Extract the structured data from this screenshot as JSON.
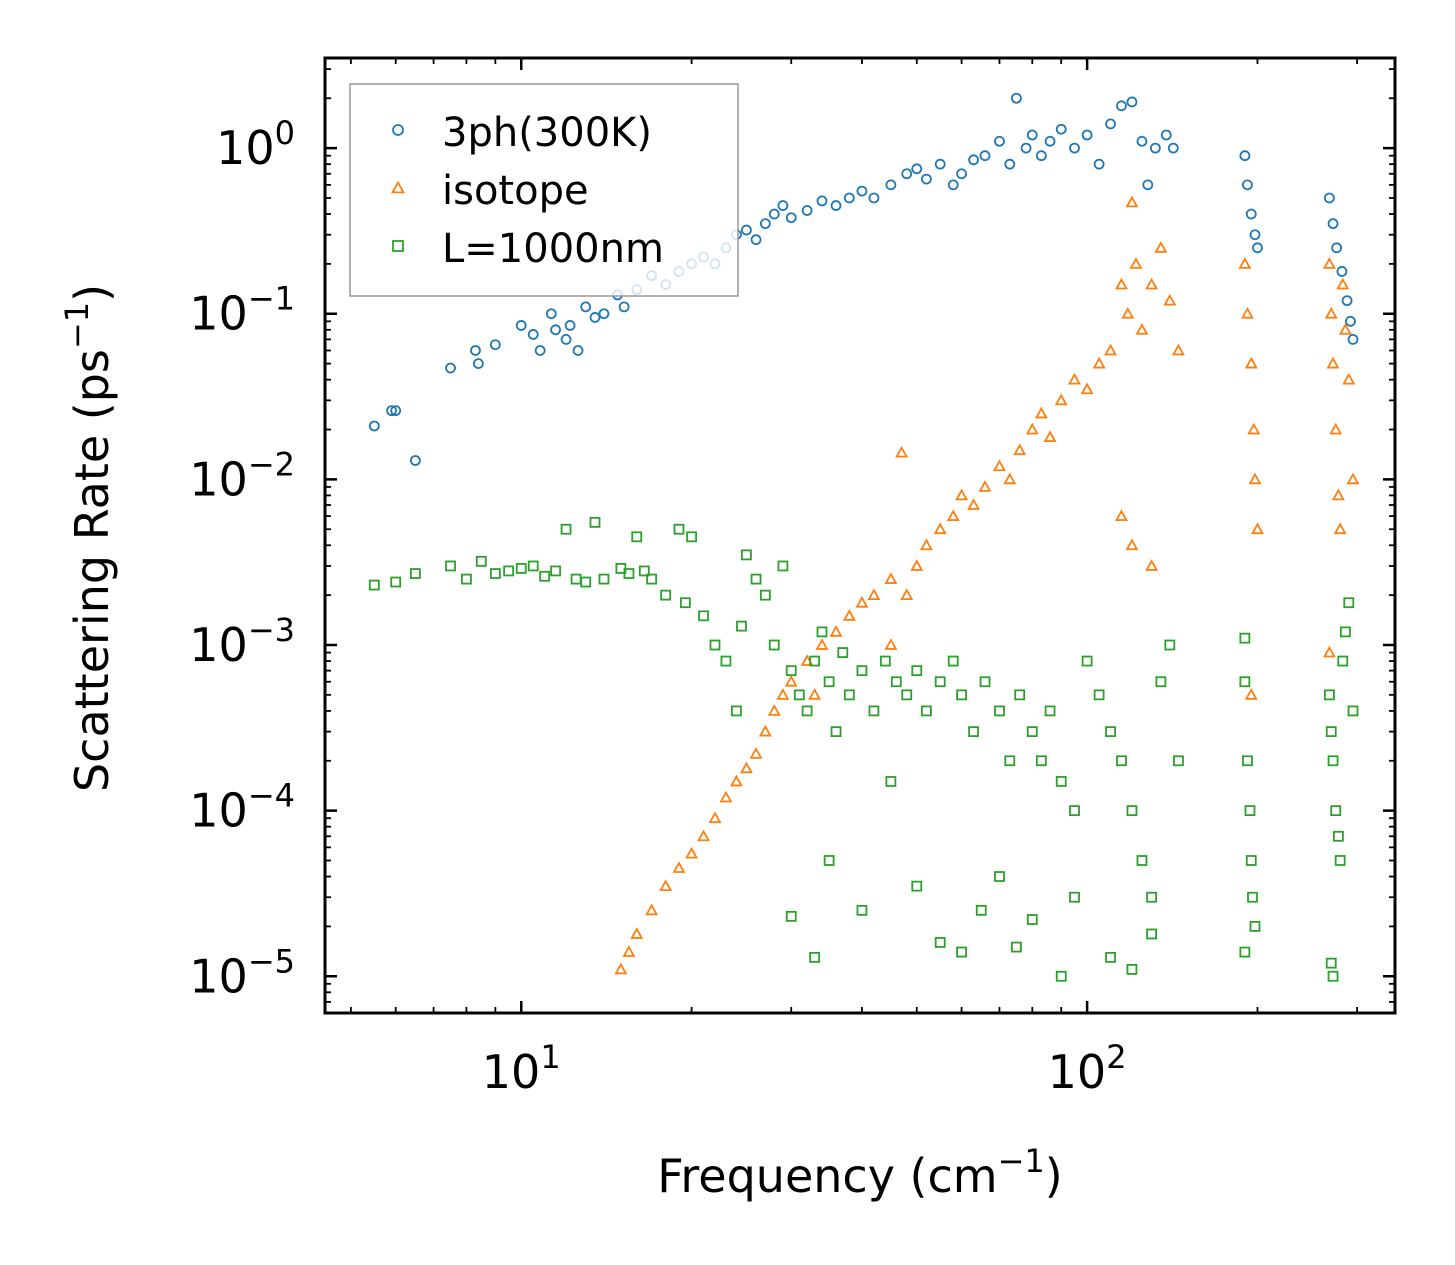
{
  "chart_data": {
    "type": "scatter",
    "title": "",
    "xlabel": "Frequency (cm",
    "xlabel_sup": "−1",
    "xlabel_close": ")",
    "ylabel": "Scattering Rate (ps",
    "ylabel_sup": "−1",
    "ylabel_close": ")",
    "xscale": "log",
    "yscale": "log",
    "xlim": [
      4.5,
      350
    ],
    "ylim": [
      6e-06,
      3.5
    ],
    "x_ticks": [
      {
        "base": "10",
        "exp": "1",
        "value": 10
      },
      {
        "base": "10",
        "exp": "2",
        "value": 100
      }
    ],
    "y_ticks": [
      {
        "base": "10",
        "exp": "0",
        "value": 1
      },
      {
        "base": "10",
        "exp": "−1",
        "value": 0.1
      },
      {
        "base": "10",
        "exp": "−2",
        "value": 0.01
      },
      {
        "base": "10",
        "exp": "−3",
        "value": 0.001
      },
      {
        "base": "10",
        "exp": "−4",
        "value": 0.0001
      },
      {
        "base": "10",
        "exp": "−5",
        "value": 1e-05
      }
    ],
    "grid": false,
    "legend_position": "top-left",
    "series": [
      {
        "name": "3ph(300K)",
        "marker": "circle",
        "color": "#1f77b4",
        "points": [
          [
            5.5,
            0.021
          ],
          [
            5.9,
            0.026
          ],
          [
            6.0,
            0.026
          ],
          [
            6.5,
            0.013
          ],
          [
            7.5,
            0.047
          ],
          [
            8.3,
            0.06
          ],
          [
            8.4,
            0.05
          ],
          [
            9.0,
            0.065
          ],
          [
            10.0,
            0.085
          ],
          [
            10.5,
            0.075
          ],
          [
            10.8,
            0.06
          ],
          [
            11.3,
            0.1
          ],
          [
            11.5,
            0.08
          ],
          [
            12.0,
            0.07
          ],
          [
            12.2,
            0.085
          ],
          [
            12.6,
            0.06
          ],
          [
            13.0,
            0.11
          ],
          [
            13.5,
            0.095
          ],
          [
            14.0,
            0.1
          ],
          [
            14.8,
            0.13
          ],
          [
            15.2,
            0.11
          ],
          [
            16.0,
            0.14
          ],
          [
            17.0,
            0.17
          ],
          [
            18.0,
            0.15
          ],
          [
            19.0,
            0.18
          ],
          [
            20.0,
            0.2
          ],
          [
            21.0,
            0.22
          ],
          [
            22.0,
            0.2
          ],
          [
            23.0,
            0.25
          ],
          [
            24.0,
            0.3
          ],
          [
            25.0,
            0.32
          ],
          [
            26.0,
            0.28
          ],
          [
            27.0,
            0.35
          ],
          [
            28.0,
            0.4
          ],
          [
            29.0,
            0.45
          ],
          [
            30.0,
            0.38
          ],
          [
            32.0,
            0.42
          ],
          [
            34.0,
            0.48
          ],
          [
            36.0,
            0.45
          ],
          [
            38.0,
            0.5
          ],
          [
            40.0,
            0.55
          ],
          [
            42.0,
            0.5
          ],
          [
            45.0,
            0.6
          ],
          [
            48.0,
            0.7
          ],
          [
            50.0,
            0.75
          ],
          [
            52.0,
            0.65
          ],
          [
            55.0,
            0.8
          ],
          [
            58.0,
            0.6
          ],
          [
            60.0,
            0.7
          ],
          [
            63.0,
            0.85
          ],
          [
            66.0,
            0.9
          ],
          [
            70.0,
            1.1
          ],
          [
            73.0,
            0.8
          ],
          [
            75.0,
            2.0
          ],
          [
            78.0,
            1.0
          ],
          [
            80.0,
            1.2
          ],
          [
            83.0,
            0.9
          ],
          [
            86.0,
            1.1
          ],
          [
            90.0,
            1.3
          ],
          [
            95.0,
            1.0
          ],
          [
            100.0,
            1.2
          ],
          [
            105.0,
            0.8
          ],
          [
            110.0,
            1.4
          ],
          [
            115.0,
            1.8
          ],
          [
            120.0,
            1.9
          ],
          [
            125.0,
            1.1
          ],
          [
            128.0,
            0.6
          ],
          [
            132.0,
            1.0
          ],
          [
            138.0,
            1.2
          ],
          [
            142.0,
            1.0
          ],
          [
            190.0,
            0.9
          ],
          [
            192.0,
            0.6
          ],
          [
            195.0,
            0.4
          ],
          [
            198.0,
            0.3
          ],
          [
            200.0,
            0.25
          ],
          [
            268.0,
            0.5
          ],
          [
            272.0,
            0.35
          ],
          [
            276.0,
            0.25
          ],
          [
            282.0,
            0.18
          ],
          [
            288.0,
            0.12
          ],
          [
            292.0,
            0.09
          ],
          [
            295.0,
            0.07
          ]
        ]
      },
      {
        "name": "isotope",
        "marker": "triangle",
        "color": "#ff7f0e",
        "points": [
          [
            15.0,
            1.1e-05
          ],
          [
            15.5,
            1.4e-05
          ],
          [
            16.0,
            1.8e-05
          ],
          [
            17.0,
            2.5e-05
          ],
          [
            18.0,
            3.5e-05
          ],
          [
            19.0,
            4.5e-05
          ],
          [
            20.0,
            5.5e-05
          ],
          [
            21.0,
            7e-05
          ],
          [
            22.0,
            9e-05
          ],
          [
            23.0,
            0.00012
          ],
          [
            24.0,
            0.00015
          ],
          [
            25.0,
            0.00018
          ],
          [
            26.0,
            0.00022
          ],
          [
            27.0,
            0.0003
          ],
          [
            28.0,
            0.0004
          ],
          [
            29.0,
            0.0005
          ],
          [
            30.0,
            0.0006
          ],
          [
            32.0,
            0.0008
          ],
          [
            34.0,
            0.001
          ],
          [
            36.0,
            0.0012
          ],
          [
            38.0,
            0.0015
          ],
          [
            40.0,
            0.0018
          ],
          [
            42.0,
            0.002
          ],
          [
            45.0,
            0.0025
          ],
          [
            48.0,
            0.002
          ],
          [
            50.0,
            0.003
          ],
          [
            52.0,
            0.004
          ],
          [
            55.0,
            0.005
          ],
          [
            58.0,
            0.006
          ],
          [
            60.0,
            0.008
          ],
          [
            63.0,
            0.007
          ],
          [
            66.0,
            0.009
          ],
          [
            70.0,
            0.012
          ],
          [
            73.0,
            0.01
          ],
          [
            76.0,
            0.015
          ],
          [
            80.0,
            0.02
          ],
          [
            83.0,
            0.025
          ],
          [
            86.0,
            0.018
          ],
          [
            90.0,
            0.03
          ],
          [
            95.0,
            0.04
          ],
          [
            100.0,
            0.035
          ],
          [
            105.0,
            0.05
          ],
          [
            110.0,
            0.06
          ],
          [
            115.0,
            0.15
          ],
          [
            118.0,
            0.1
          ],
          [
            122.0,
            0.2
          ],
          [
            125.0,
            0.08
          ],
          [
            130.0,
            0.15
          ],
          [
            135.0,
            0.25
          ],
          [
            140.0,
            0.12
          ],
          [
            145.0,
            0.06
          ],
          [
            120.0,
            0.47
          ],
          [
            47.0,
            0.0145
          ],
          [
            115.0,
            0.006
          ],
          [
            120.0,
            0.004
          ],
          [
            130.0,
            0.003
          ],
          [
            33.0,
            0.0005
          ],
          [
            45.0,
            0.001
          ],
          [
            190.0,
            0.2
          ],
          [
            192.0,
            0.1
          ],
          [
            195.0,
            0.05
          ],
          [
            197.0,
            0.02
          ],
          [
            198.0,
            0.01
          ],
          [
            200.0,
            0.005
          ],
          [
            195.0,
            0.0005
          ],
          [
            268.0,
            0.2
          ],
          [
            270.0,
            0.1
          ],
          [
            272.0,
            0.05
          ],
          [
            275.0,
            0.02
          ],
          [
            278.0,
            0.008
          ],
          [
            280.0,
            0.005
          ],
          [
            283.0,
            0.15
          ],
          [
            286.0,
            0.08
          ],
          [
            290.0,
            0.04
          ],
          [
            295.0,
            0.01
          ],
          [
            268.0,
            0.0009
          ]
        ]
      },
      {
        "name": "L=1000nm",
        "marker": "square",
        "color": "#2ca02c",
        "points": [
          [
            5.5,
            0.0023
          ],
          [
            6.0,
            0.0024
          ],
          [
            6.5,
            0.0027
          ],
          [
            7.5,
            0.003
          ],
          [
            8.0,
            0.0025
          ],
          [
            8.5,
            0.0032
          ],
          [
            9.0,
            0.0027
          ],
          [
            9.5,
            0.0028
          ],
          [
            10.0,
            0.0029
          ],
          [
            10.5,
            0.003
          ],
          [
            11.0,
            0.0026
          ],
          [
            11.5,
            0.0028
          ],
          [
            12.0,
            0.005
          ],
          [
            12.5,
            0.0025
          ],
          [
            13.0,
            0.0024
          ],
          [
            13.5,
            0.0055
          ],
          [
            14.0,
            0.0025
          ],
          [
            15.0,
            0.0029
          ],
          [
            15.5,
            0.0027
          ],
          [
            16.0,
            0.0045
          ],
          [
            16.5,
            0.0028
          ],
          [
            17.0,
            0.0025
          ],
          [
            18.0,
            0.002
          ],
          [
            19.0,
            0.005
          ],
          [
            19.5,
            0.0018
          ],
          [
            20.0,
            0.0045
          ],
          [
            21.0,
            0.0015
          ],
          [
            22.0,
            0.001
          ],
          [
            23.0,
            0.0008
          ],
          [
            24.0,
            0.0004
          ],
          [
            24.5,
            0.0013
          ],
          [
            25.0,
            0.0035
          ],
          [
            26.0,
            0.0025
          ],
          [
            27.0,
            0.002
          ],
          [
            28.0,
            0.001
          ],
          [
            29.0,
            0.003
          ],
          [
            30.0,
            0.0007
          ],
          [
            31.0,
            0.0005
          ],
          [
            32.0,
            0.0004
          ],
          [
            33.0,
            0.0008
          ],
          [
            34.0,
            0.0012
          ],
          [
            35.0,
            0.0006
          ],
          [
            36.0,
            0.0003
          ],
          [
            37.0,
            0.0009
          ],
          [
            38.0,
            0.0005
          ],
          [
            40.0,
            0.0007
          ],
          [
            42.0,
            0.0004
          ],
          [
            44.0,
            0.0008
          ],
          [
            46.0,
            0.0006
          ],
          [
            48.0,
            0.0005
          ],
          [
            50.0,
            0.0007
          ],
          [
            52.0,
            0.0004
          ],
          [
            55.0,
            0.0006
          ],
          [
            58.0,
            0.0008
          ],
          [
            60.0,
            0.0005
          ],
          [
            63.0,
            0.0003
          ],
          [
            66.0,
            0.0006
          ],
          [
            70.0,
            0.0004
          ],
          [
            73.0,
            0.0002
          ],
          [
            76.0,
            0.0005
          ],
          [
            80.0,
            0.0003
          ],
          [
            83.0,
            0.0002
          ],
          [
            86.0,
            0.0004
          ],
          [
            90.0,
            0.00015
          ],
          [
            95.0,
            0.0001
          ],
          [
            100.0,
            0.0008
          ],
          [
            105.0,
            0.0005
          ],
          [
            110.0,
            0.0003
          ],
          [
            115.0,
            0.0002
          ],
          [
            120.0,
            0.0001
          ],
          [
            125.0,
            5e-05
          ],
          [
            130.0,
            3e-05
          ],
          [
            135.0,
            0.0006
          ],
          [
            140.0,
            0.001
          ],
          [
            145.0,
            0.0002
          ],
          [
            30.0,
            2.3e-05
          ],
          [
            33.0,
            1.3e-05
          ],
          [
            35.0,
            5e-05
          ],
          [
            40.0,
            2.5e-05
          ],
          [
            45.0,
            0.00015
          ],
          [
            50.0,
            3.5e-05
          ],
          [
            55.0,
            1.6e-05
          ],
          [
            60.0,
            1.4e-05
          ],
          [
            65.0,
            2.5e-05
          ],
          [
            70.0,
            4e-05
          ],
          [
            75.0,
            1.5e-05
          ],
          [
            80.0,
            2.2e-05
          ],
          [
            90.0,
            1e-05
          ],
          [
            95.0,
            3e-05
          ],
          [
            110.0,
            1.3e-05
          ],
          [
            120.0,
            1.1e-05
          ],
          [
            130.0,
            1.8e-05
          ],
          [
            190.0,
            0.0011
          ],
          [
            190.0,
            0.0006
          ],
          [
            192.0,
            0.0002
          ],
          [
            194.0,
            0.0001
          ],
          [
            195.0,
            5e-05
          ],
          [
            196.0,
            3e-05
          ],
          [
            198.0,
            2e-05
          ],
          [
            190.0,
            1.4e-05
          ],
          [
            268.0,
            0.0005
          ],
          [
            270.0,
            0.0003
          ],
          [
            272.0,
            0.0002
          ],
          [
            275.0,
            0.0001
          ],
          [
            278.0,
            7e-05
          ],
          [
            280.0,
            5e-05
          ],
          [
            283.0,
            0.0008
          ],
          [
            286.0,
            0.0012
          ],
          [
            290.0,
            0.0018
          ],
          [
            295.0,
            0.0004
          ],
          [
            270.0,
            1.2e-05
          ],
          [
            272.0,
            1e-05
          ]
        ]
      }
    ]
  },
  "colors": {
    "series_blue": "#1f77b4",
    "series_orange": "#ff7f0e",
    "series_green": "#2ca02c",
    "legend_border": "#999999"
  }
}
